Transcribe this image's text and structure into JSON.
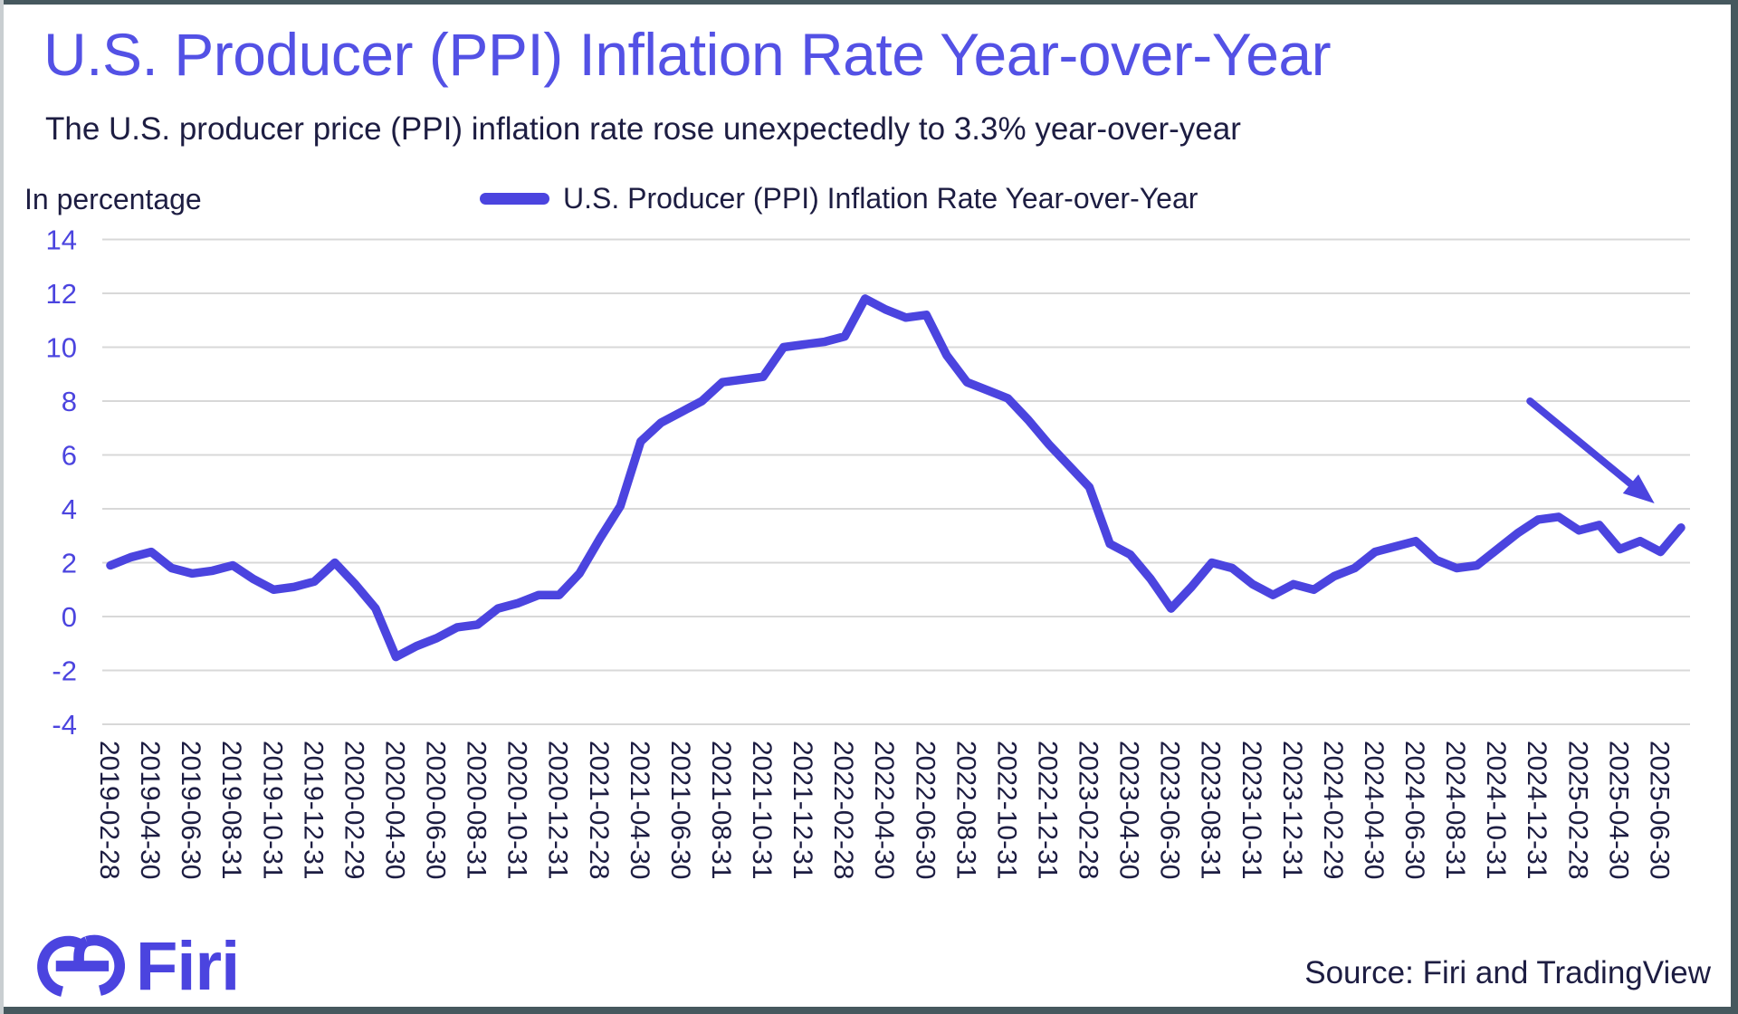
{
  "header": {
    "title": "U.S. Producer (PPI) Inflation Rate Year-over-Year",
    "subtitle": "The U.S. producer price (PPI) inflation rate rose unexpectedly to 3.3% year-over-year"
  },
  "legend": {
    "label": "U.S. Producer (PPI) Inflation Rate Year-over-Year"
  },
  "footer": {
    "brand": "Firi",
    "source": "Source: Firi and TradingView"
  },
  "colors": {
    "accent": "#4b44df",
    "title": "#5351e5",
    "text": "#1d1d42",
    "gridline": "#d8d8d8",
    "frame": "#46585e"
  },
  "chart_data": {
    "type": "line",
    "title": "U.S. Producer (PPI) Inflation Rate Year-over-Year",
    "subtitle": "The U.S. producer price (PPI) inflation rate rose unexpectedly to 3.3% year-over-year",
    "xlabel": "",
    "ylabel": "In percentage",
    "legend_position": "top",
    "grid": "horizontal",
    "ylim": [
      -4,
      14
    ],
    "ytick_step": 2,
    "x_start": "2019-02",
    "x_interval": "monthly",
    "x_tick_labels": [
      "2019-02-28",
      "2019-04-30",
      "2019-06-30",
      "2019-08-31",
      "2019-10-31",
      "2019-12-31",
      "2020-02-29",
      "2020-04-30",
      "2020-06-30",
      "2020-08-31",
      "2020-10-31",
      "2020-12-31",
      "2021-02-28",
      "2021-04-30",
      "2021-06-30",
      "2021-08-31",
      "2021-10-31",
      "2021-12-31",
      "2022-02-28",
      "2022-04-30",
      "2022-06-30",
      "2022-08-31",
      "2022-10-31",
      "2022-12-31",
      "2023-02-28",
      "2023-04-30",
      "2023-06-30",
      "2023-08-31",
      "2023-10-31",
      "2023-12-31",
      "2024-02-29",
      "2024-04-30",
      "2024-06-30",
      "2024-08-31",
      "2024-10-31",
      "2024-12-31",
      "2025-02-28",
      "2025-04-30",
      "2025-06-30"
    ],
    "series": [
      {
        "name": "U.S. Producer (PPI) Inflation Rate Year-over-Year",
        "color": "#4b44df",
        "values": [
          1.9,
          2.2,
          2.4,
          1.8,
          1.6,
          1.7,
          1.9,
          1.4,
          1.0,
          1.1,
          1.3,
          2.0,
          1.2,
          0.3,
          -1.5,
          -1.1,
          -0.8,
          -0.4,
          -0.3,
          0.3,
          0.5,
          0.8,
          0.8,
          1.6,
          2.9,
          4.1,
          6.5,
          7.2,
          7.6,
          8.0,
          8.7,
          8.8,
          8.9,
          10.0,
          10.1,
          10.2,
          10.4,
          11.8,
          11.4,
          11.1,
          11.2,
          9.7,
          8.7,
          8.4,
          8.1,
          7.3,
          6.4,
          5.6,
          4.8,
          2.7,
          2.3,
          1.4,
          0.3,
          1.1,
          2.0,
          1.8,
          1.2,
          0.8,
          1.2,
          1.0,
          1.5,
          1.8,
          2.4,
          2.6,
          2.8,
          2.1,
          1.8,
          1.9,
          2.5,
          3.1,
          3.6,
          3.7,
          3.2,
          3.4,
          2.5,
          2.8,
          2.4,
          3.3
        ]
      }
    ],
    "annotation": {
      "type": "arrow",
      "from": {
        "month_index": 69.6,
        "value": 8.0
      },
      "to": {
        "month_index": 75.7,
        "value": 4.2
      }
    }
  }
}
